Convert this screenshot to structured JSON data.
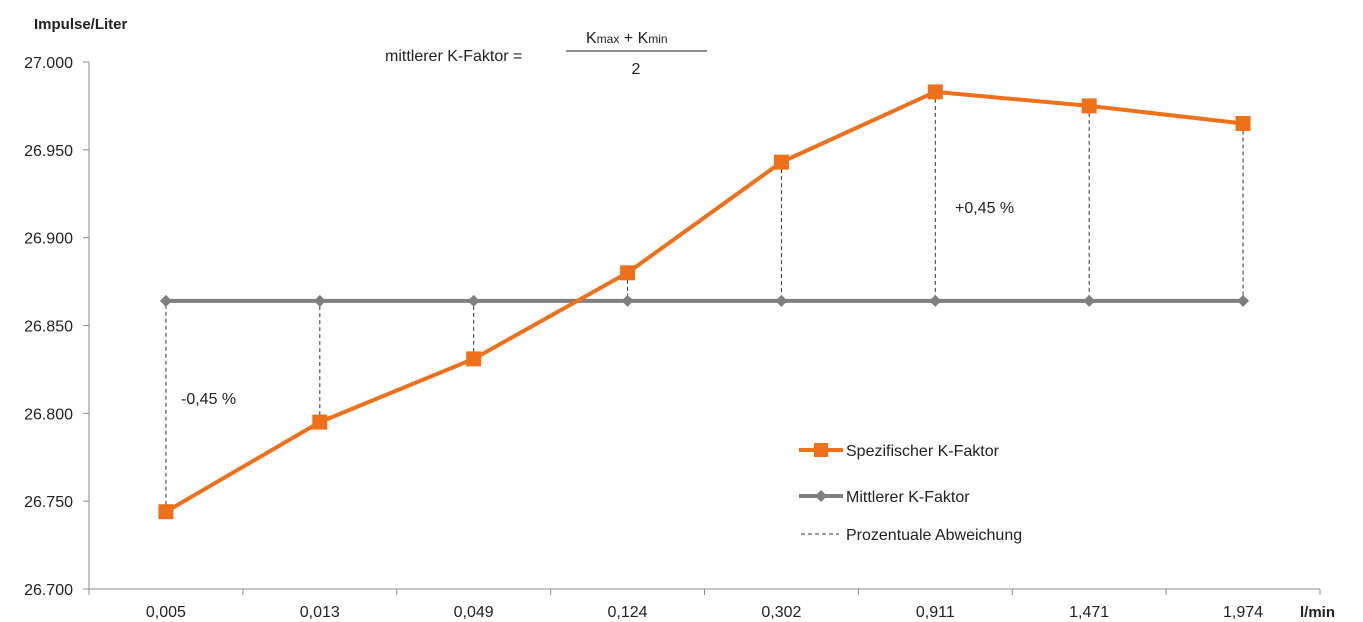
{
  "chart_data": {
    "type": "line",
    "y_axis_title": "Impulse/Liter",
    "x_axis_title": "l/min",
    "categories": [
      "0,005",
      "0,013",
      "0,049",
      "0,124",
      "0,302",
      "0,911",
      "1,471",
      "1,974"
    ],
    "ylim": [
      26700,
      27000
    ],
    "y_ticks": [
      26700,
      26750,
      26800,
      26850,
      26900,
      26950,
      27000
    ],
    "y_tick_labels": [
      "26.700",
      "26.750",
      "26.800",
      "26.850",
      "26.900",
      "26.950",
      "27.000"
    ],
    "grid": false,
    "legend_position": "lower-right",
    "series": [
      {
        "name": "Spezifischer K-Faktor",
        "color": "#f07019",
        "marker": "square",
        "values": [
          26744,
          26795,
          26831,
          26880,
          26943,
          26983,
          26975,
          26965
        ]
      },
      {
        "name": "Mittlerer K-Faktor",
        "color": "#7f7f7f",
        "marker": "diamond",
        "values": [
          26864,
          26864,
          26864,
          26864,
          26864,
          26864,
          26864,
          26864
        ]
      }
    ],
    "deviation_legend": "Prozentuale Abweichung",
    "formula": {
      "lhs": "mittlerer K-Faktor =",
      "k1": "K",
      "sub1": "max",
      "plus": " + ",
      "k2": "K",
      "sub2": "min",
      "denominator": "2"
    },
    "annotations": {
      "minus": "-0,45 %",
      "plus": "+0,45 %"
    }
  }
}
